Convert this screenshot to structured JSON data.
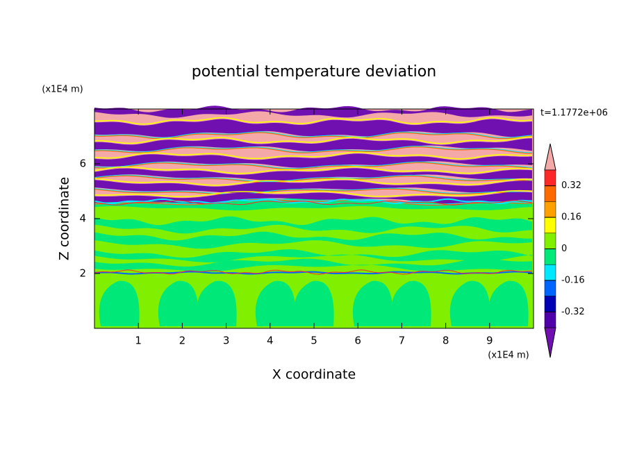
{
  "chart_data": {
    "type": "contour",
    "title": "potential temperature deviation",
    "x_label": "X coordinate",
    "y_label": "Z coordinate",
    "x_unit": "(x1E4 m)",
    "y_unit": "(x1E4 m)",
    "annotation": "t=1.1772e+06",
    "xlim": [
      0,
      10
    ],
    "xticks": [
      1,
      2,
      3,
      4,
      5,
      6,
      7,
      8,
      9
    ],
    "ylim": [
      0,
      8
    ],
    "yticks": [
      2,
      4,
      6
    ],
    "colorbar": {
      "clim": [
        -0.4,
        0.4
      ],
      "ticks": [
        0.32,
        0.16,
        0,
        -0.16,
        -0.32
      ],
      "colors": [
        "#f4a8a8",
        "#ff2828",
        "#ff6a00",
        "#ffa000",
        "#ffff00",
        "#80f000",
        "#00e878",
        "#00e8ff",
        "#0064ff",
        "#0000b4",
        "#5000a8",
        "#7010b0"
      ]
    }
  }
}
